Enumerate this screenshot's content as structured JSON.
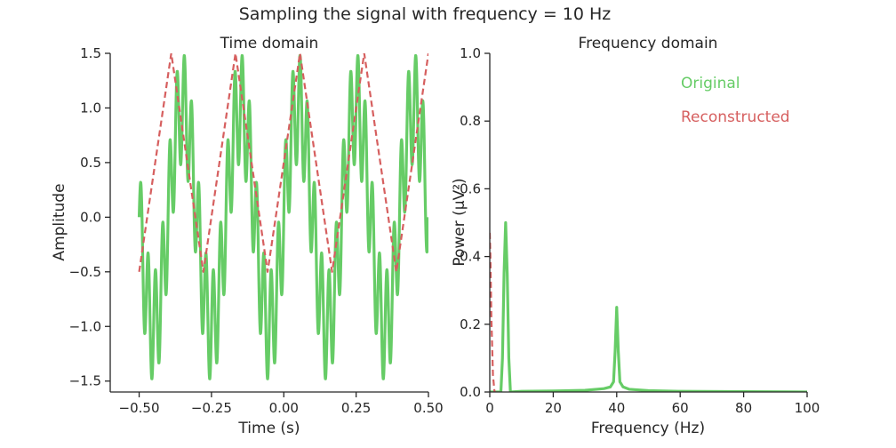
{
  "figure": {
    "suptitle": "Sampling the signal with frequency = 10 Hz"
  },
  "colors": {
    "original": "#66cc66",
    "reconstructed": "#d65f5f",
    "axis": "#262626"
  },
  "chart_data": [
    {
      "type": "line",
      "title": "Time domain",
      "xlabel": "Time (s)",
      "ylabel": "Amplitude",
      "xlim": [
        -0.6,
        0.5
      ],
      "ylim": [
        -1.6,
        1.5
      ],
      "xticks": [
        -0.5,
        -0.25,
        0.0,
        0.25,
        0.5
      ],
      "xtick_labels": [
        "−0.50",
        "−0.25",
        "0.00",
        "0.25",
        "0.50"
      ],
      "yticks": [
        -1.5,
        -1.0,
        -0.5,
        0.0,
        0.5,
        1.0,
        1.5
      ],
      "ytick_labels": [
        "−1.5",
        "−1.0",
        "−0.5",
        "0.0",
        "0.5",
        "1.0",
        "1.5"
      ],
      "grid": false,
      "series": [
        {
          "name": "Original",
          "style": "solid",
          "color": "#66cc66",
          "description_formula": "sin(2*pi*5*t) + 0.5*sin(2*pi*40*t), t from -0.5 to 0.5 s",
          "x_range": [
            -0.5,
            0.5
          ],
          "components": [
            {
              "amplitude": 1.0,
              "frequency_hz": 5
            },
            {
              "amplitude": 0.5,
              "frequency_hz": 40
            }
          ]
        },
        {
          "name": "Reconstructed",
          "style": "dashed",
          "color": "#d65f5f",
          "x": [
            -0.5,
            -0.389,
            -0.278,
            -0.167,
            -0.056,
            0.056,
            0.167,
            0.278,
            0.389,
            0.5
          ],
          "y": [
            -0.5,
            1.5,
            -0.5,
            1.5,
            -0.5,
            1.5,
            -0.5,
            1.5,
            -0.5,
            1.5
          ]
        }
      ]
    },
    {
      "type": "line",
      "title": "Frequency domain",
      "xlabel": "Frequency (Hz)",
      "ylabel": "Power (μV²)",
      "xlim": [
        0,
        100
      ],
      "ylim": [
        0,
        1.0
      ],
      "xticks": [
        0,
        20,
        40,
        60,
        80,
        100
      ],
      "xtick_labels": [
        "0",
        "20",
        "40",
        "60",
        "80",
        "100"
      ],
      "yticks": [
        0.0,
        0.2,
        0.4,
        0.6,
        0.8,
        1.0
      ],
      "ytick_labels": [
        "0.0",
        "0.2",
        "0.4",
        "0.6",
        "0.8",
        "1.0"
      ],
      "grid": false,
      "legend": {
        "placement": "top-right",
        "entries": [
          "Original",
          "Reconstructed"
        ]
      },
      "series": [
        {
          "name": "Original",
          "style": "solid",
          "color": "#66cc66",
          "x": [
            0,
            3.5,
            4,
            4.5,
            5,
            5.5,
            6,
            6.5,
            10,
            20,
            30,
            36,
            38,
            39,
            39.5,
            40,
            40.5,
            41,
            42,
            44,
            50,
            60,
            80,
            100
          ],
          "y": [
            0,
            0,
            0.1,
            0.35,
            0.5,
            0.35,
            0.1,
            0,
            0.002,
            0.003,
            0.005,
            0.01,
            0.015,
            0.03,
            0.12,
            0.25,
            0.12,
            0.03,
            0.015,
            0.008,
            0.004,
            0.002,
            0.001,
            0
          ]
        },
        {
          "name": "Reconstructed",
          "style": "dashed",
          "color": "#d65f5f",
          "x": [
            0,
            0.2,
            0.5,
            1,
            1.5,
            2
          ],
          "y": [
            0.47,
            0.4,
            0.22,
            0.05,
            0.0,
            0.0
          ]
        }
      ]
    }
  ]
}
